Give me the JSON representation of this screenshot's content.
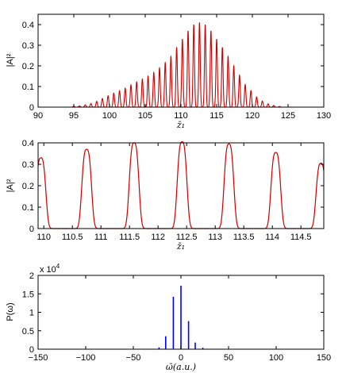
{
  "chart_data": [
    {
      "type": "line",
      "xlabel": "z̄₁",
      "ylabel": "|A|²",
      "xlim": [
        90,
        130
      ],
      "ylim": [
        0,
        0.45
      ],
      "x_ticks": [
        "90",
        "95",
        "100",
        "105",
        "110",
        "115",
        "120",
        "125",
        "130"
      ],
      "y_ticks": [
        "0",
        "0.1",
        "0.2",
        "0.3",
        "0.4"
      ],
      "color": "#cc0000",
      "grid": false,
      "series": [
        {
          "x": [
            95.0,
            95.8,
            96.6,
            97.4,
            98.2,
            99.0,
            99.8,
            100.6,
            101.4,
            102.2,
            103.0,
            103.8,
            104.6,
            105.4,
            106.2,
            107.0,
            107.8,
            108.6,
            109.4,
            110.2,
            111.0,
            111.8,
            112.6,
            113.4,
            114.2,
            115.0,
            115.8,
            116.6,
            117.4,
            118.2,
            119.0,
            119.8,
            120.6,
            121.4,
            122.2,
            123.0,
            123.8
          ],
          "values": [
            0.004,
            0.006,
            0.011,
            0.018,
            0.028,
            0.042,
            0.055,
            0.068,
            0.08,
            0.092,
            0.108,
            0.122,
            0.136,
            0.15,
            0.168,
            0.19,
            0.215,
            0.245,
            0.29,
            0.33,
            0.37,
            0.4,
            0.41,
            0.4,
            0.37,
            0.33,
            0.29,
            0.245,
            0.2,
            0.155,
            0.11,
            0.08,
            0.05,
            0.03,
            0.016,
            0.008,
            0.003
          ]
        }
      ]
    },
    {
      "type": "line",
      "xlabel": "z̄₁",
      "ylabel": "|A|²",
      "xlim": [
        109.9,
        114.9
      ],
      "ylim": [
        0,
        0.4
      ],
      "x_ticks": [
        "110",
        "110.5",
        "111",
        "111.5",
        "112",
        "112.5",
        "113",
        "113.5",
        "114",
        "114.5"
      ],
      "y_ticks": [
        "0",
        "0.1",
        "0.2",
        "0.3",
        "0.4"
      ],
      "color": "#cc0000",
      "grid": false,
      "series": [
        {
          "x": [
            109.95,
            110.75,
            111.58,
            112.42,
            113.24,
            114.06,
            114.85
          ],
          "values": [
            0.33,
            0.37,
            0.4,
            0.405,
            0.395,
            0.355,
            0.305
          ]
        }
      ]
    },
    {
      "type": "bar",
      "xlabel": "ω̄(a.u.)",
      "ylabel": "P(ω)",
      "multiplier": "x 10",
      "multiplier_exp": "4",
      "xlim": [
        -150,
        150
      ],
      "ylim": [
        0,
        2
      ],
      "x_ticks": [
        "−150",
        "−100",
        "−50",
        "0",
        "50",
        "100",
        "150"
      ],
      "y_ticks": [
        "0",
        "0.5",
        "1",
        "1.5",
        "2"
      ],
      "color": "#0000ff",
      "grid": false,
      "series": [
        {
          "x": [
            -23,
            -16,
            -8,
            0,
            8,
            15,
            23
          ],
          "values": [
            0.05,
            0.35,
            1.42,
            1.72,
            0.76,
            0.18,
            0.04
          ]
        }
      ]
    }
  ]
}
